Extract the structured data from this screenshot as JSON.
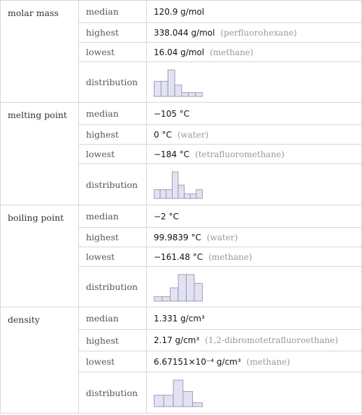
{
  "groups": [
    {
      "label": "molar mass",
      "rows": [
        {
          "label": "median",
          "value": "120.9 g/mol"
        },
        {
          "label": "highest",
          "value": "338.044 g/mol",
          "note": "(perfluorohexane)"
        },
        {
          "label": "lowest",
          "value": "16.04 g/mol",
          "note": "(methane)"
        },
        {
          "label": "distribution",
          "histogram": [
            4,
            4,
            7,
            3,
            1,
            1,
            1
          ]
        }
      ]
    },
    {
      "label": "melting point",
      "rows": [
        {
          "label": "median",
          "value": "−105 °C"
        },
        {
          "label": "highest",
          "value": "0 °C",
          "note": "(water)"
        },
        {
          "label": "lowest",
          "value": "−184 °C",
          "note": "(tetrafluoromethane)"
        },
        {
          "label": "distribution",
          "histogram": [
            2,
            2,
            2,
            6,
            3,
            1,
            1,
            2
          ]
        }
      ]
    },
    {
      "label": "boiling point",
      "rows": [
        {
          "label": "median",
          "value": "−2 °C"
        },
        {
          "label": "highest",
          "value": "99.9839 °C",
          "note": "(water)"
        },
        {
          "label": "lowest",
          "value": "−161.48 °C",
          "note": "(methane)"
        },
        {
          "label": "distribution",
          "histogram": [
            1,
            1,
            3,
            6,
            6,
            4
          ]
        }
      ]
    },
    {
      "label": "density",
      "rows": [
        {
          "label": "median",
          "value": "1.331 g/cm³"
        },
        {
          "label": "highest",
          "value": "2.17 g/cm³",
          "note": "(1,2-dibromotetrafluoroethane)"
        },
        {
          "label": "lowest",
          "value": "6.67151×10⁻⁴ g/cm³",
          "note": "(methane)"
        },
        {
          "label": "distribution",
          "histogram": [
            3,
            3,
            7,
            4,
            1
          ]
        }
      ]
    }
  ]
}
